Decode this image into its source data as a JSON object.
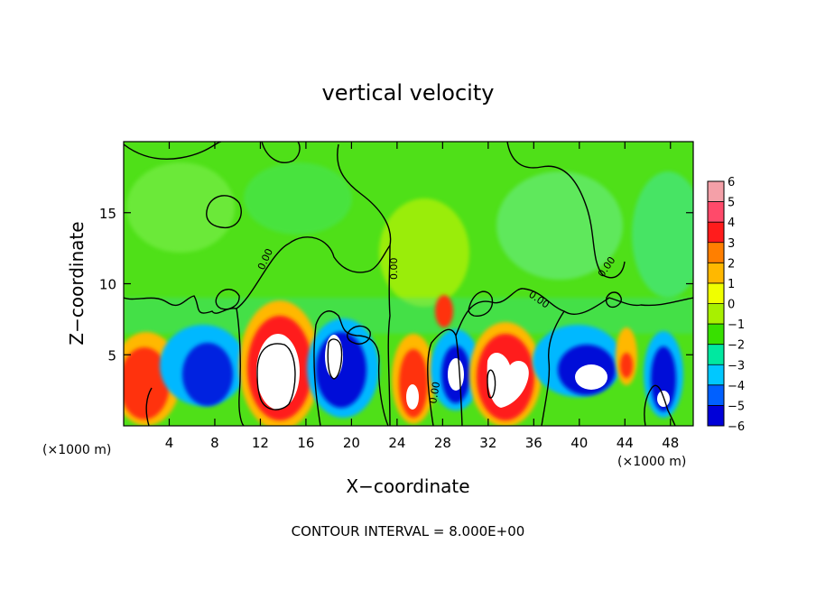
{
  "chart_data": {
    "type": "heatmap",
    "title": "vertical velocity",
    "xlabel": "X−coordinate",
    "ylabel": "Z−coordinate",
    "x_scale_note_left": "(×1000 m)",
    "x_scale_note_right": "(×1000 m)",
    "footer": "CONTOUR INTERVAL = 8.000E+00",
    "xlim": [
      0,
      50
    ],
    "ylim": [
      0,
      20
    ],
    "x_ticks": [
      4,
      8,
      12,
      16,
      20,
      24,
      28,
      32,
      36,
      40,
      44,
      48
    ],
    "y_ticks": [
      5,
      10,
      15
    ],
    "colorbar": {
      "range": [
        -6,
        6
      ],
      "labels": [
        "6",
        "5",
        "4",
        "3",
        "2",
        "1",
        "0",
        "−1",
        "−2",
        "−3",
        "−4",
        "−5",
        "−6"
      ],
      "colors": [
        "#f4a0a8",
        "#ff4a6a",
        "#ff1c1c",
        "#ff7f00",
        "#ffb800",
        "#f0ff00",
        "#a8f000",
        "#38e000",
        "#00e8a0",
        "#00c8ff",
        "#0060ff",
        "#0000d8",
        "#7a00a8"
      ]
    },
    "contour_labels": [
      "0.00",
      "0.00",
      "0.00",
      "0.00",
      "0.00"
    ],
    "features": [
      {
        "x": 2.5,
        "z": 2.5,
        "w": 5,
        "kind": "updraft",
        "core": false
      },
      {
        "x": 7,
        "z": 3,
        "w": -4.5,
        "kind": "downdraft",
        "core": false
      },
      {
        "x": 13.5,
        "z": 4,
        "w": 8,
        "kind": "updraft",
        "core": true
      },
      {
        "x": 18.5,
        "z": 3.5,
        "w": -4.5,
        "kind": "downdraft",
        "core": false
      },
      {
        "x": 25.5,
        "z": 2.5,
        "w": 6,
        "kind": "updraft",
        "core": true
      },
      {
        "x": 29.5,
        "z": 3,
        "w": -4,
        "kind": "downdraft",
        "core": false
      },
      {
        "x": 33.5,
        "z": 3.5,
        "w": 8,
        "kind": "updraft",
        "core": true
      },
      {
        "x": 40.5,
        "z": 4,
        "w": -4.5,
        "kind": "downdraft",
        "core": true
      },
      {
        "x": 43.5,
        "z": 4.5,
        "w": 4,
        "kind": "updraft",
        "core": false
      },
      {
        "x": 47,
        "z": 3,
        "w": -4.5,
        "kind": "downdraft",
        "core": true
      },
      {
        "x": 28,
        "z": 8,
        "w": 4,
        "kind": "updraft",
        "core": false
      }
    ]
  }
}
